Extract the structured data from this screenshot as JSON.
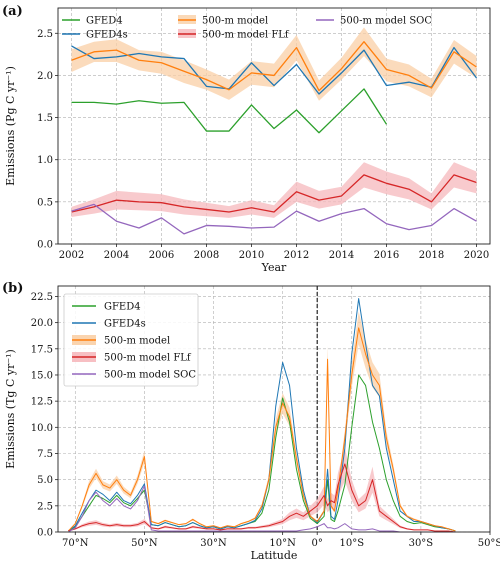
{
  "chart_data": [
    {
      "type": "line",
      "panel_label": "(a)",
      "xlabel": "Year",
      "ylabel": "Emissions (Pg C yr⁻¹)",
      "xlim": [
        2001.4,
        2020.6
      ],
      "ylim": [
        0,
        2.8
      ],
      "xticks": [
        2002,
        2004,
        2006,
        2008,
        2010,
        2012,
        2014,
        2016,
        2018,
        2020
      ],
      "xtick_labels": [
        "2002",
        "2004",
        "2006",
        "2008",
        "2010",
        "2012",
        "2014",
        "2016",
        "2018",
        "2020"
      ],
      "yticks": [
        0,
        0.5,
        1.0,
        1.5,
        2.0,
        2.5
      ],
      "ytick_labels": [
        "0.0",
        "0.5",
        "1.0",
        "1.5",
        "2.0",
        "2.5"
      ],
      "grid": true,
      "legend_position": "top",
      "series": [
        {
          "name": "GFED4",
          "color": "#2ca02c",
          "x": [
            2002,
            2003,
            2004,
            2005,
            2006,
            2007,
            2008,
            2009,
            2010,
            2011,
            2012,
            2013,
            2014,
            2015,
            2016
          ],
          "values": [
            1.68,
            1.68,
            1.66,
            1.7,
            1.67,
            1.68,
            1.34,
            1.34,
            1.65,
            1.37,
            1.59,
            1.32,
            1.58,
            1.84,
            1.42
          ]
        },
        {
          "name": "GFED4s",
          "color": "#1f77b4",
          "x": [
            2002,
            2003,
            2004,
            2005,
            2006,
            2007,
            2008,
            2009,
            2010,
            2011,
            2012,
            2013,
            2014,
            2015,
            2016,
            2017,
            2018,
            2019,
            2020
          ],
          "values": [
            2.35,
            2.2,
            2.22,
            2.26,
            2.22,
            2.2,
            1.87,
            1.84,
            2.15,
            1.88,
            2.13,
            1.78,
            2.03,
            2.3,
            1.88,
            1.92,
            1.86,
            2.33,
            1.97
          ]
        },
        {
          "name": "500-m model",
          "color": "#ff7f0e",
          "band_color": "#f9cfa6",
          "x": [
            2002,
            2003,
            2004,
            2005,
            2006,
            2007,
            2008,
            2009,
            2010,
            2011,
            2012,
            2013,
            2014,
            2015,
            2016,
            2017,
            2018,
            2019,
            2020
          ],
          "values": [
            2.18,
            2.28,
            2.3,
            2.18,
            2.15,
            2.05,
            1.95,
            1.83,
            2.03,
            2.0,
            2.33,
            1.82,
            2.08,
            2.4,
            2.07,
            2.0,
            1.85,
            2.28,
            2.1
          ],
          "lower": [
            2.04,
            2.16,
            2.16,
            2.06,
            2.02,
            1.91,
            1.83,
            1.71,
            1.89,
            1.86,
            2.18,
            1.7,
            1.95,
            2.23,
            1.93,
            1.87,
            1.74,
            2.14,
            1.97
          ],
          "upper": [
            2.31,
            2.4,
            2.43,
            2.3,
            2.28,
            2.18,
            2.07,
            1.95,
            2.17,
            2.14,
            2.48,
            1.94,
            2.21,
            2.57,
            2.2,
            2.13,
            1.96,
            2.42,
            2.23
          ]
        },
        {
          "name": "500-m model FLf",
          "color": "#d62728",
          "band_color": "#f6b8bc",
          "x": [
            2002,
            2003,
            2004,
            2005,
            2006,
            2007,
            2008,
            2009,
            2010,
            2011,
            2012,
            2013,
            2014,
            2015,
            2016,
            2017,
            2018,
            2019,
            2020
          ],
          "values": [
            0.38,
            0.44,
            0.52,
            0.5,
            0.49,
            0.44,
            0.41,
            0.38,
            0.43,
            0.38,
            0.62,
            0.52,
            0.57,
            0.82,
            0.72,
            0.65,
            0.5,
            0.82,
            0.73
          ],
          "lower": [
            0.32,
            0.36,
            0.41,
            0.4,
            0.39,
            0.35,
            0.33,
            0.31,
            0.35,
            0.31,
            0.5,
            0.42,
            0.47,
            0.67,
            0.59,
            0.53,
            0.41,
            0.67,
            0.6
          ],
          "upper": [
            0.44,
            0.53,
            0.63,
            0.61,
            0.59,
            0.53,
            0.49,
            0.45,
            0.52,
            0.46,
            0.74,
            0.63,
            0.68,
            0.97,
            0.86,
            0.78,
            0.6,
            0.97,
            0.86
          ]
        },
        {
          "name": "500-m model SOC",
          "color": "#9467bd",
          "x": [
            2002,
            2003,
            2004,
            2005,
            2006,
            2007,
            2008,
            2009,
            2010,
            2011,
            2012,
            2013,
            2014,
            2015,
            2016,
            2017,
            2018,
            2019,
            2020
          ],
          "values": [
            0.39,
            0.47,
            0.27,
            0.19,
            0.31,
            0.12,
            0.22,
            0.21,
            0.19,
            0.2,
            0.39,
            0.27,
            0.36,
            0.42,
            0.24,
            0.17,
            0.22,
            0.42,
            0.27
          ]
        }
      ]
    },
    {
      "type": "line",
      "panel_label": "(b)",
      "xlabel": "Latitude",
      "ylabel": "Emissions (Tg C yr⁻¹)",
      "xlim": [
        75,
        -50
      ],
      "ylim": [
        0,
        23.5
      ],
      "xticks": [
        70,
        50,
        30,
        10,
        0,
        -10,
        -30,
        -50
      ],
      "xtick_labels": [
        "70°N",
        "50°N",
        "30°N",
        "10°N",
        "0°",
        "10°S",
        "30°S",
        "50°S"
      ],
      "yticks": [
        0,
        2.5,
        5,
        7.5,
        10,
        12.5,
        15,
        17.5,
        20,
        22.5
      ],
      "ytick_labels": [
        "0.0",
        "2.5",
        "5.0",
        "7.5",
        "10.0",
        "12.5",
        "15.0",
        "17.5",
        "20.0",
        "22.5"
      ],
      "vertical_line_x": 0,
      "grid": true,
      "legend_position": "top-left",
      "series": [
        {
          "name": "GFED4",
          "color": "#2ca02c",
          "x": [
            72,
            70,
            68,
            66,
            64,
            62,
            60,
            58,
            56,
            54,
            52,
            50,
            48,
            46,
            44,
            42,
            40,
            38,
            36,
            34,
            32,
            30,
            28,
            26,
            24,
            22,
            20,
            18,
            16,
            14,
            12,
            10,
            8,
            6,
            4,
            2,
            0,
            -2,
            -3,
            -4,
            -5,
            -6,
            -8,
            -10,
            -12,
            -14,
            -16,
            -18,
            -20,
            -22,
            -24,
            -26,
            -28,
            -30,
            -32,
            -34,
            -36,
            -38,
            -40
          ],
          "values": [
            0.1,
            0.5,
            1.5,
            2.5,
            3.5,
            3.2,
            2.8,
            3.5,
            2.8,
            2.5,
            3.2,
            4.0,
            0.7,
            0.6,
            0.9,
            0.7,
            0.5,
            0.6,
            0.9,
            0.6,
            0.4,
            0.5,
            0.3,
            0.5,
            0.4,
            0.6,
            0.8,
            1.0,
            1.8,
            4.0,
            9.0,
            12.8,
            10.5,
            6.0,
            3.0,
            1.3,
            0.8,
            1.5,
            5.0,
            1.2,
            1.0,
            2.0,
            4.5,
            10.0,
            15.0,
            14.0,
            10.5,
            8.0,
            5.0,
            3.0,
            1.5,
            1.0,
            0.8,
            0.9,
            0.7,
            0.5,
            0.4,
            0.3,
            0.1
          ]
        },
        {
          "name": "GFED4s",
          "color": "#1f77b4",
          "x": [
            72,
            70,
            68,
            66,
            64,
            62,
            60,
            58,
            56,
            54,
            52,
            50,
            48,
            46,
            44,
            42,
            40,
            38,
            36,
            34,
            32,
            30,
            28,
            26,
            24,
            22,
            20,
            18,
            16,
            14,
            12,
            10,
            8,
            6,
            4,
            2,
            0,
            -2,
            -3,
            -4,
            -5,
            -6,
            -8,
            -10,
            -12,
            -14,
            -16,
            -18,
            -20,
            -22,
            -24,
            -26,
            -28,
            -30,
            -32,
            -34,
            -36,
            -38,
            -40
          ],
          "values": [
            0.1,
            0.6,
            1.8,
            3.0,
            4.0,
            3.6,
            3.0,
            3.8,
            3.0,
            2.7,
            3.5,
            4.6,
            0.7,
            0.6,
            0.9,
            0.7,
            0.5,
            0.6,
            0.9,
            0.6,
            0.4,
            0.5,
            0.3,
            0.5,
            0.4,
            0.6,
            0.8,
            1.1,
            2.2,
            5.0,
            12.0,
            16.2,
            14.0,
            8.0,
            4.0,
            1.5,
            0.9,
            2.0,
            6.0,
            1.5,
            1.2,
            3.0,
            8.0,
            17.0,
            22.3,
            18.0,
            14.0,
            13.0,
            8.0,
            5.0,
            2.0,
            1.5,
            1.0,
            1.0,
            0.8,
            0.6,
            0.4,
            0.3,
            0.1
          ]
        },
        {
          "name": "500-m model",
          "color": "#ff7f0e",
          "band_color": "#f9cfa6",
          "x": [
            72,
            70,
            68,
            66,
            64,
            62,
            60,
            58,
            56,
            54,
            52,
            50,
            48,
            46,
            44,
            42,
            40,
            38,
            36,
            34,
            32,
            30,
            28,
            26,
            24,
            22,
            20,
            18,
            16,
            14,
            12,
            10,
            8,
            6,
            4,
            2,
            0,
            -2,
            -3,
            -4,
            -5,
            -6,
            -8,
            -10,
            -12,
            -14,
            -16,
            -18,
            -20,
            -22,
            -24,
            -26,
            -28,
            -30,
            -32,
            -34,
            -36,
            -38,
            -40
          ],
          "values": [
            0.1,
            0.8,
            2.5,
            4.5,
            5.6,
            4.5,
            4.2,
            5.0,
            4.0,
            3.5,
            5.0,
            7.2,
            1.0,
            0.8,
            1.1,
            0.9,
            0.7,
            0.8,
            1.2,
            0.8,
            0.5,
            0.6,
            0.4,
            0.6,
            0.5,
            0.8,
            1.0,
            1.3,
            2.5,
            5.0,
            10.0,
            12.3,
            11.0,
            7.0,
            3.5,
            1.5,
            1.0,
            2.0,
            16.5,
            2.5,
            2.0,
            4.0,
            9.0,
            15.0,
            19.5,
            17.0,
            15.0,
            14.0,
            9.0,
            6.0,
            2.5,
            1.5,
            1.2,
            1.0,
            0.8,
            0.6,
            0.5,
            0.3,
            0.1
          ],
          "spread": 0.08
        },
        {
          "name": "500-m model FLf",
          "color": "#d62728",
          "band_color": "#f6b8bc",
          "x": [
            72,
            70,
            68,
            66,
            64,
            62,
            60,
            58,
            56,
            54,
            52,
            50,
            48,
            46,
            44,
            42,
            40,
            38,
            36,
            34,
            32,
            30,
            28,
            26,
            24,
            22,
            20,
            18,
            16,
            14,
            12,
            10,
            8,
            6,
            4,
            2,
            0,
            -2,
            -3,
            -4,
            -5,
            -6,
            -8,
            -10,
            -12,
            -14,
            -16,
            -18,
            -20,
            -22,
            -24,
            -26,
            -28,
            -30,
            -32,
            -34,
            -36,
            -38,
            -40
          ],
          "values": [
            0.1,
            0.3,
            0.6,
            0.8,
            0.9,
            0.7,
            0.6,
            0.7,
            0.6,
            0.6,
            0.7,
            1.0,
            0.4,
            0.3,
            0.5,
            0.4,
            0.3,
            0.3,
            0.5,
            0.4,
            0.3,
            0.3,
            0.2,
            0.3,
            0.3,
            0.3,
            0.4,
            0.4,
            0.5,
            0.6,
            0.8,
            1.0,
            1.5,
            1.8,
            1.5,
            2.0,
            2.5,
            3.5,
            2.5,
            3.0,
            2.8,
            4.5,
            6.5,
            4.0,
            2.5,
            3.0,
            5.0,
            2.0,
            1.5,
            1.0,
            0.5,
            0.3,
            0.2,
            0.2,
            0.2,
            0.1,
            0.1,
            0.1,
            0.0
          ],
          "spread": 0.25
        },
        {
          "name": "500-m model SOC",
          "color": "#9467bd",
          "x": [
            72,
            70,
            68,
            66,
            64,
            62,
            60,
            58,
            56,
            54,
            52,
            50,
            48,
            46,
            44,
            42,
            40,
            38,
            36,
            34,
            32,
            30,
            28,
            26,
            24,
            22,
            20,
            18,
            16,
            14,
            12,
            10,
            8,
            6,
            4,
            2,
            0,
            -2,
            -3,
            -4,
            -5,
            -6,
            -8,
            -10,
            -12,
            -14,
            -16,
            -18,
            -20,
            -22,
            -24,
            -26,
            -28,
            -30,
            -32,
            -34,
            -36,
            -38,
            -40
          ],
          "values": [
            0.0,
            0.4,
            1.5,
            3.0,
            3.8,
            3.0,
            2.5,
            3.2,
            2.5,
            2.2,
            3.0,
            4.4,
            0.2,
            0.1,
            0.1,
            0.1,
            0.1,
            0.1,
            0.1,
            0.1,
            0.1,
            0.1,
            0.1,
            0.1,
            0.1,
            0.1,
            0.1,
            0.1,
            0.1,
            0.1,
            0.1,
            0.1,
            0.1,
            0.1,
            0.2,
            0.3,
            0.5,
            0.8,
            0.4,
            0.4,
            0.3,
            0.4,
            0.8,
            0.3,
            0.2,
            0.2,
            0.3,
            0.1,
            0.1,
            0.1,
            0.0,
            0.0,
            0.0,
            0.0,
            0.0,
            0.0,
            0.0,
            0.0,
            0.0
          ]
        }
      ]
    }
  ]
}
